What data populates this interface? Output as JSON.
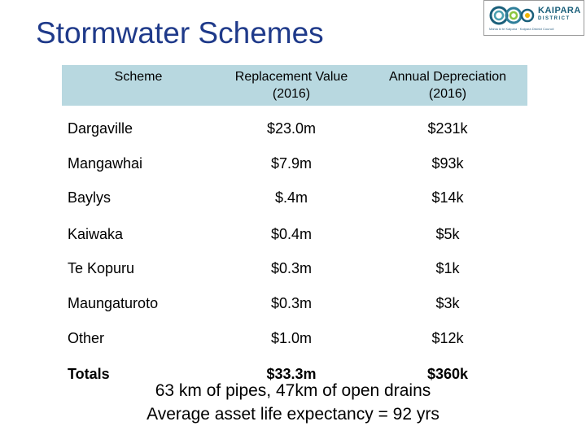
{
  "title": "Stormwater Schemes",
  "logo": {
    "name_top": "KAIPARA",
    "name_bottom": "DISTRICT",
    "tagline": "Mahia ki te Kaipara · Kaipara District Council"
  },
  "table": {
    "headers": {
      "scheme": "Scheme",
      "replacement_line1": "Replacement Value",
      "replacement_line2": "(2016)",
      "depreciation_line1": "Annual Depreciation",
      "depreciation_line2": "(2016)"
    },
    "rows": [
      {
        "scheme": "Dargaville",
        "replacement": "$23.0m",
        "depreciation": "$231k"
      },
      {
        "scheme": "Mangawhai",
        "replacement": "$7.9m",
        "depreciation": "$93k"
      },
      {
        "scheme": "Baylys",
        "replacement": "$.4m",
        "depreciation": "$14k"
      },
      {
        "scheme": "Kaiwaka",
        "replacement": "$0.4m",
        "depreciation": "$5k"
      },
      {
        "scheme": "Te Kopuru",
        "replacement": "$0.3m",
        "depreciation": "$1k"
      },
      {
        "scheme": "Maungaturoto",
        "replacement": "$0.3m",
        "depreciation": "$3k"
      },
      {
        "scheme": "Other",
        "replacement": "$1.0m",
        "depreciation": "$12k"
      }
    ],
    "totals": {
      "scheme": "Totals",
      "replacement": "$33.3m",
      "depreciation": "$360k"
    }
  },
  "notes": {
    "line1": "63 km of pipes, 47km of open drains",
    "line2": "Average asset life expectancy = 92 yrs"
  },
  "colors": {
    "title": "#1f3a8a",
    "header_bg": "#b8d8e0"
  }
}
